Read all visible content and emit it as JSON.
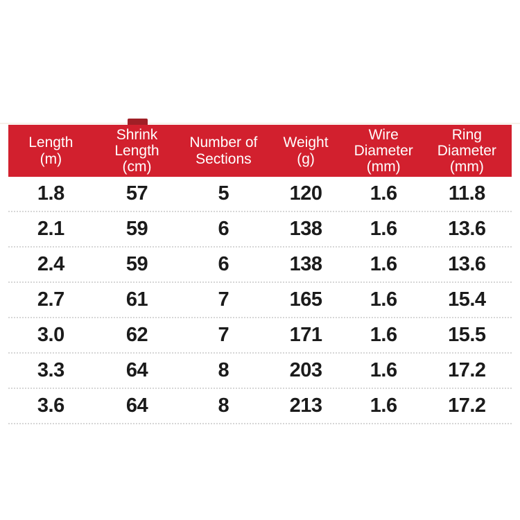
{
  "page": {
    "background": "#ffffff"
  },
  "colors": {
    "header_red": "#d2202e",
    "notch_dark_red": "#a01f26",
    "header_text": "#ffffff",
    "body_text": "#1b1b1b",
    "divider_gray": "#d6d6d6",
    "faint_line": "#f6f1e9"
  },
  "table": {
    "headers": [
      {
        "label": "Length\n(m)"
      },
      {
        "label": "Shrink\nLength\n(cm)"
      },
      {
        "label": "Number of\nSections"
      },
      {
        "label": "Weight\n(g)"
      },
      {
        "label": "Wire\nDiameter\n(mm)"
      },
      {
        "label": "Ring\nDiameter\n(mm)"
      }
    ],
    "rows": [
      [
        "1.8",
        "57",
        "5",
        "120",
        "1.6",
        "11.8"
      ],
      [
        "2.1",
        "59",
        "6",
        "138",
        "1.6",
        "13.6"
      ],
      [
        "2.4",
        "59",
        "6",
        "138",
        "1.6",
        "13.6"
      ],
      [
        "2.7",
        "61",
        "7",
        "165",
        "1.6",
        "15.4"
      ],
      [
        "3.0",
        "62",
        "7",
        "171",
        "1.6",
        "15.5"
      ],
      [
        "3.3",
        "64",
        "8",
        "203",
        "1.6",
        "17.2"
      ],
      [
        "3.6",
        "64",
        "8",
        "213",
        "1.6",
        "17.2"
      ]
    ]
  },
  "chart_data": {
    "type": "table",
    "title": "Fishing rod specification table",
    "columns": [
      "Length (m)",
      "Shrink Length (cm)",
      "Number of Sections",
      "Weight (g)",
      "Wire Diameter (mm)",
      "Ring Diameter (mm)"
    ],
    "rows": [
      [
        1.8,
        57,
        5,
        120,
        1.6,
        11.8
      ],
      [
        2.1,
        59,
        6,
        138,
        1.6,
        13.6
      ],
      [
        2.4,
        59,
        6,
        138,
        1.6,
        13.6
      ],
      [
        2.7,
        61,
        7,
        165,
        1.6,
        15.4
      ],
      [
        3.0,
        62,
        7,
        171,
        1.6,
        15.5
      ],
      [
        3.3,
        64,
        8,
        203,
        1.6,
        17.2
      ],
      [
        3.6,
        64,
        8,
        213,
        1.6,
        17.2
      ]
    ],
    "header_background": "#d2202e",
    "header_text_color": "#ffffff",
    "row_divider_style": "dotted"
  }
}
